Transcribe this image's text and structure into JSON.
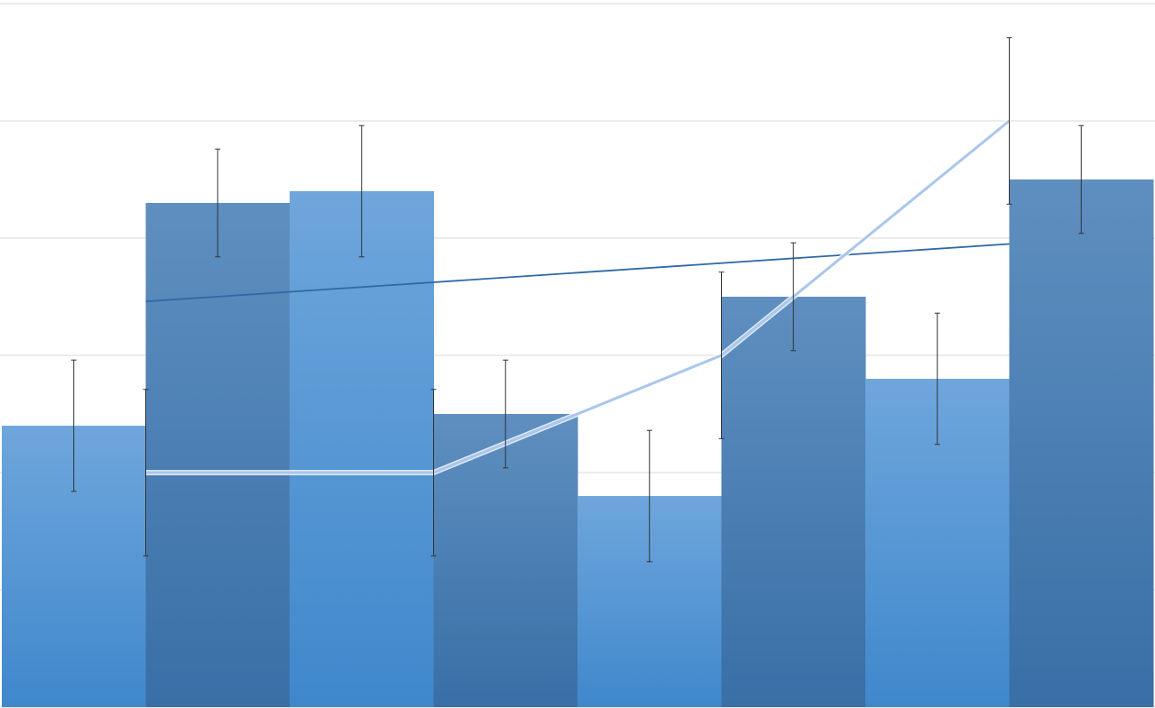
{
  "chart_data": {
    "type": "bar",
    "title": "",
    "xlabel": "",
    "ylabel": "",
    "ylim": [
      0,
      6
    ],
    "grid": true,
    "legend": "none",
    "bar_series": {
      "values": [
        2.4,
        4.3,
        4.4,
        2.5,
        1.8,
        3.5,
        2.8,
        4.5
      ],
      "errors": [
        0.56,
        0.46,
        0.56,
        0.46,
        0.56,
        0.46,
        0.56,
        0.46
      ],
      "colors": [
        "light",
        "dark",
        "light",
        "dark",
        "light",
        "dark",
        "light",
        "dark"
      ]
    },
    "line_series": {
      "type": "line",
      "values": [
        2,
        2,
        3,
        5
      ],
      "errors": [
        0.71,
        0.71,
        0.71,
        0.71
      ]
    },
    "trendline": {
      "type": "linear",
      "start": 3.46,
      "end": 3.95
    },
    "colors": {
      "bar_light_top": "#6fa6dc",
      "bar_light_bottom": "#3f88cc",
      "bar_dark_top": "#5f8fc0",
      "bar_dark_bottom": "#386fa6",
      "line": "#a9c6ec",
      "trendline": "#2f6aa6",
      "error_bar": "#333333",
      "grid": "#d9d9d9"
    }
  }
}
